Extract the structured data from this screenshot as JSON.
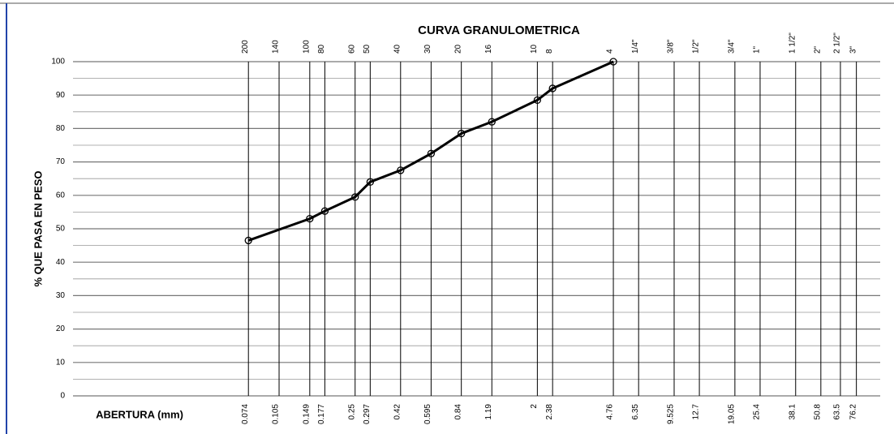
{
  "chart_data": {
    "type": "line",
    "title": "CURVA GRANULOMETRICA",
    "y_label": "% QUE PASA EN PESO",
    "x_label": "ABERTURA (mm)",
    "x_scale": "log",
    "xlim": [
      0.01,
      100
    ],
    "ylim": [
      0,
      100
    ],
    "yticks": [
      0,
      10,
      20,
      30,
      40,
      50,
      60,
      70,
      80,
      90,
      100
    ],
    "yminor": [
      5,
      15,
      25,
      35,
      45,
      55,
      65,
      75,
      85,
      95
    ],
    "xticks": [
      0.074,
      0.105,
      0.149,
      0.177,
      0.25,
      0.297,
      0.42,
      0.595,
      0.84,
      1.19,
      2,
      2.38,
      4.76,
      6.35,
      9.525,
      12.7,
      19.05,
      25.4,
      38.1,
      50.8,
      63.5,
      76.2
    ],
    "sieve_names": [
      "200",
      "140",
      "100",
      "80",
      "60",
      "50",
      "40",
      "30",
      "20",
      "16",
      "10",
      "8",
      "4",
      "1/4\"",
      "3/8\"",
      "1/2\"",
      "3/4\"",
      "1\"",
      "1 1/2\"",
      "2\"",
      "2 1/2\"",
      "3\""
    ],
    "grid": true,
    "series": [
      {
        "color": "#000000",
        "x": [
          0.074,
          0.149,
          0.177,
          0.25,
          0.297,
          0.42,
          0.595,
          0.84,
          1.19,
          2,
          2.38,
          4.76
        ],
        "values": [
          46.5,
          53,
          55.3,
          59.5,
          64,
          67.5,
          72.5,
          78.5,
          82,
          88.5,
          92,
          100
        ]
      }
    ]
  }
}
